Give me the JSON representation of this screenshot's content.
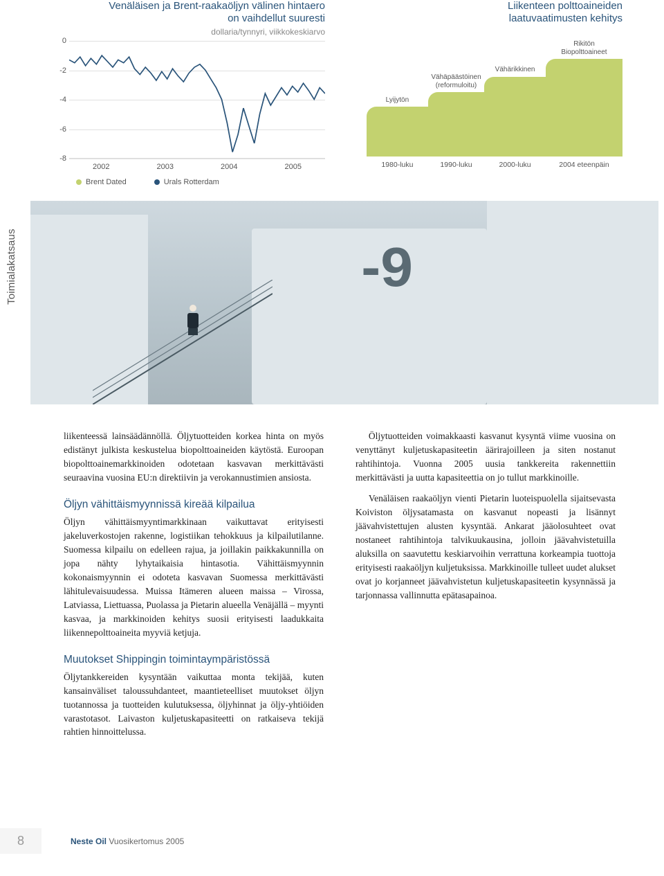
{
  "sideTab": "Toimialakatsaus",
  "chart1": {
    "type": "line",
    "title_l1": "Venäläisen ja Brent-raakaöljyn välinen hintaero",
    "title_l2": "on vaihdellut suuresti",
    "subtitle": "dollaria/tynnyri, viikkokeskiarvo",
    "ylim": [
      -8,
      0
    ],
    "ytick_step": 2,
    "yticks": [
      "0",
      "-2",
      "-4",
      "-6",
      "-8"
    ],
    "x_labels": [
      "2002",
      "2003",
      "2004",
      "2005"
    ],
    "line_color": "#2a547a",
    "grid_color": "#e0e0e0",
    "legend": [
      {
        "label": "Brent Dated",
        "color": "#c3d26f"
      },
      {
        "label": "Urals Rotterdam",
        "color": "#2a547a"
      }
    ],
    "series": [
      -1.3,
      -1.5,
      -1.1,
      -1.7,
      -1.2,
      -1.6,
      -1.0,
      -1.4,
      -1.8,
      -1.3,
      -1.5,
      -1.1,
      -1.9,
      -2.3,
      -1.8,
      -2.2,
      -2.7,
      -2.1,
      -2.6,
      -1.9,
      -2.4,
      -2.8,
      -2.2,
      -1.8,
      -1.6,
      -2.0,
      -2.6,
      -3.2,
      -4.0,
      -5.6,
      -7.6,
      -6.4,
      -4.6,
      -5.8,
      -7.0,
      -5.0,
      -3.6,
      -4.4,
      -3.8,
      -3.2,
      -3.7,
      -3.1,
      -3.5,
      -2.9,
      -3.4,
      -4.0,
      -3.2,
      -3.6
    ]
  },
  "chart2": {
    "type": "step",
    "title_l1": "Liikenteen polttoaineiden",
    "title_l2": "laatuvaatimusten kehitys",
    "fill_color": "#c3d26f",
    "steps": [
      {
        "left_pct": 0,
        "width_pct": 24,
        "height_pct": 45,
        "label": "Lyijytön"
      },
      {
        "left_pct": 24,
        "width_pct": 22,
        "height_pct": 58,
        "label_l1": "Vähäpäästöinen",
        "label_l2": "(reformuloitu)"
      },
      {
        "left_pct": 46,
        "width_pct": 24,
        "height_pct": 72,
        "label": "Vähärikkinen"
      },
      {
        "left_pct": 70,
        "width_pct": 30,
        "height_pct": 88,
        "label_l1": "Rikitön",
        "label_l2": "Biopolttoaineet"
      }
    ],
    "x_labels": [
      "1980-luku",
      "1990-luku",
      "2000-luku",
      "2004 eteenpäin"
    ]
  },
  "photo_marking": "-9",
  "text": {
    "col1_p1": "liikenteessä lainsäädännöllä. Öljytuotteiden korkea hinta on myös edistänyt julkista keskustelua biopolttoaineiden käytöstä. Euroopan biopolttoainemarkkinoiden odotetaan kasvavan merkittävästi seuraavina vuosina EU:n direktiivin ja verokannustimien ansiosta.",
    "col1_h1": "Öljyn vähittäismyynnissä kireää kilpailua",
    "col1_p2": "Öljyn vähittäismyyntimarkkinaan vaikuttavat erityisesti jakeluverkostojen rakenne, logistiikan tehokkuus ja kilpailutilanne. Suomessa kilpailu on edelleen rajua, ja joillakin paikkakunnilla on jopa nähty lyhytaikaisia hintasotia. Vähittäismyynnin kokonaismyynnin ei odoteta kasvavan Suomessa merkittävästi lähitulevaisuudessa. Muissa Itämeren alueen maissa – Virossa, Latviassa, Liettuassa, Puolassa ja Pietarin alueella Venäjällä – myynti kasvaa, ja markkinoiden kehitys suosii erityisesti laadukkaita liikennepolttoaineita myyviä ketjuja.",
    "col1_h2": "Muutokset Shippingin toimintaympäristössä",
    "col1_p3": "Öljytankkereiden kysyntään vaikuttaa monta tekijää, kuten kansainväliset taloussuhdanteet, maantieteelliset muutokset öljyn tuotannossa ja tuotteiden kulutuksessa, öljyhinnat ja öljy-yhtiöiden varastotasot. Laivaston kuljetuskapasiteetti on ratkaiseva tekijä rahtien hinnoittelussa.",
    "col2_p1": "Öljytuotteiden voimakkaasti kasvanut kysyntä viime vuosina on venyttänyt kuljetuskapasiteetin äärirajoilleen ja siten nostanut rahtihintoja. Vuonna 2005 uusia tankkereita rakennettiin merkittävästi ja uutta kapasiteettia on jo tullut markkinoille.",
    "col2_p2": "Venäläisen raakaöljyn vienti Pietarin luoteispuolella sijaitsevasta Koiviston öljysatamasta on kasvanut nopeasti ja lisännyt jäävahvistettujen alusten kysyntää. Ankarat jääolosuhteet ovat nostaneet rahtihintoja talvikuukausina, jolloin jäävahvistetuilla aluksilla on saavutettu keskiarvoihin verrattuna korkeampia tuottoja erityisesti raakaöljyn kuljetuksissa. Markkinoille tulleet uudet alukset ovat jo korjanneet jäävahvistetun kuljetuskapasiteetin kysynnässä ja tarjonnassa vallinnutta epätasapainoa."
  },
  "footer": {
    "page": "8",
    "brand": "Neste Oil",
    "doc": "Vuosikertomus 2005"
  }
}
